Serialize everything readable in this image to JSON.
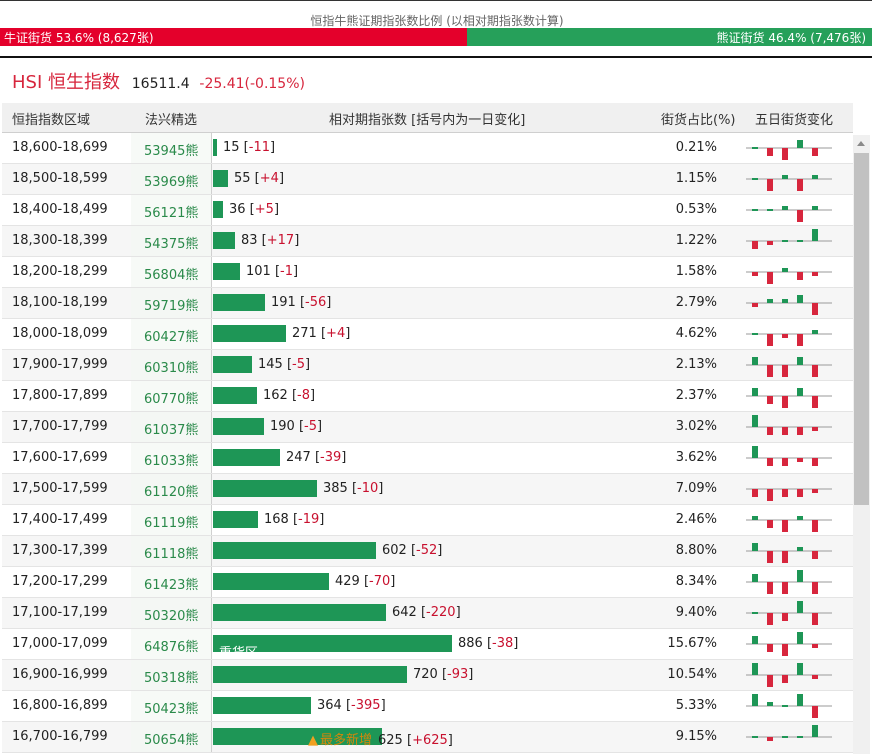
{
  "ratio": {
    "title": "恒指牛熊证期指张数比例 (以相对期指张数计算)",
    "bull_label": "牛证街货",
    "bull_stat": "53.6% (8,627张)",
    "bear_label": "熊证街货",
    "bear_stat": "46.4% (7,476张)",
    "bull_fraction": 0.536,
    "bull_color": "#e4002b",
    "bear_color": "#26a05a"
  },
  "index": {
    "code": "HSI",
    "name": "恒生指数",
    "value": "16511.4",
    "change": "-25.41(-0.15%)"
  },
  "table": {
    "headers": {
      "range": "恒指指数区域",
      "warrant": "法兴精选",
      "contracts": "相对期指张数 [括号内为一日变化]",
      "share": "街货占比(%)",
      "spark": "五日街货变化"
    },
    "rows": [
      {
        "range": "18,600-18,699",
        "warrant": "53945熊",
        "count": 15,
        "count_text": "15",
        "change": "-11",
        "pct": "0.21%",
        "bar_label": "",
        "note": "",
        "spark": [
          0,
          -2,
          -3,
          2,
          -2
        ]
      },
      {
        "range": "18,500-18,599",
        "warrant": "53969熊",
        "count": 55,
        "count_text": "55",
        "change": "+4",
        "pct": "1.15%",
        "bar_label": "",
        "note": "",
        "spark": [
          0,
          -3,
          1,
          -3,
          1
        ]
      },
      {
        "range": "18,400-18,499",
        "warrant": "56121熊",
        "count": 36,
        "count_text": "36",
        "change": "+5",
        "pct": "0.53%",
        "bar_label": "",
        "note": "",
        "spark": [
          0,
          0,
          1,
          -3,
          1
        ]
      },
      {
        "range": "18,300-18,399",
        "warrant": "54375熊",
        "count": 83,
        "count_text": "83",
        "change": "+17",
        "pct": "1.22%",
        "bar_label": "",
        "note": "",
        "spark": [
          -2,
          -1,
          0,
          0,
          3
        ]
      },
      {
        "range": "18,200-18,299",
        "warrant": "56804熊",
        "count": 101,
        "count_text": "101",
        "change": "-1",
        "pct": "1.58%",
        "bar_label": "",
        "note": "",
        "spark": [
          -1,
          -3,
          1,
          -2,
          -1
        ]
      },
      {
        "range": "18,100-18,199",
        "warrant": "59719熊",
        "count": 191,
        "count_text": "191",
        "change": "-56",
        "pct": "2.79%",
        "bar_label": "",
        "note": "",
        "spark": [
          -1,
          1,
          1,
          2,
          -3
        ]
      },
      {
        "range": "18,000-18,099",
        "warrant": "60427熊",
        "count": 271,
        "count_text": "271",
        "change": "+4",
        "pct": "4.62%",
        "bar_label": "",
        "note": "",
        "spark": [
          0,
          -3,
          -1,
          -3,
          1
        ]
      },
      {
        "range": "17,900-17,999",
        "warrant": "60310熊",
        "count": 145,
        "count_text": "145",
        "change": "-5",
        "pct": "2.13%",
        "bar_label": "",
        "note": "",
        "spark": [
          2,
          -3,
          -3,
          2,
          -3
        ]
      },
      {
        "range": "17,800-17,899",
        "warrant": "60770熊",
        "count": 162,
        "count_text": "162",
        "change": "-8",
        "pct": "2.37%",
        "bar_label": "",
        "note": "",
        "spark": [
          2,
          -2,
          -3,
          2,
          -3
        ]
      },
      {
        "range": "17,700-17,799",
        "warrant": "61037熊",
        "count": 190,
        "count_text": "190",
        "change": "-5",
        "pct": "3.02%",
        "bar_label": "",
        "note": "",
        "spark": [
          3,
          -2,
          -2,
          -2,
          -1
        ]
      },
      {
        "range": "17,600-17,699",
        "warrant": "61033熊",
        "count": 247,
        "count_text": "247",
        "change": "-39",
        "pct": "3.62%",
        "bar_label": "",
        "note": "",
        "spark": [
          3,
          -2,
          -2,
          -1,
          -2
        ]
      },
      {
        "range": "17,500-17,599",
        "warrant": "61120熊",
        "count": 385,
        "count_text": "385",
        "change": "-10",
        "pct": "7.09%",
        "bar_label": "",
        "note": "",
        "spark": [
          -2,
          -3,
          -2,
          -2,
          -1
        ]
      },
      {
        "range": "17,400-17,499",
        "warrant": "61119熊",
        "count": 168,
        "count_text": "168",
        "change": "-19",
        "pct": "2.46%",
        "bar_label": "",
        "note": "",
        "spark": [
          1,
          -2,
          -3,
          1,
          -3
        ]
      },
      {
        "range": "17,300-17,399",
        "warrant": "61118熊",
        "count": 602,
        "count_text": "602",
        "change": "-52",
        "pct": "8.80%",
        "bar_label": "",
        "note": "",
        "spark": [
          2,
          -3,
          -3,
          1,
          -2
        ]
      },
      {
        "range": "17,200-17,299",
        "warrant": "61423熊",
        "count": 429,
        "count_text": "429",
        "change": "-70",
        "pct": "8.34%",
        "bar_label": "",
        "note": "",
        "spark": [
          2,
          -3,
          -3,
          3,
          -3
        ]
      },
      {
        "range": "17,100-17,199",
        "warrant": "50320熊",
        "count": 642,
        "count_text": "642",
        "change": "-220",
        "pct": "9.40%",
        "bar_label": "",
        "note": "",
        "spark": [
          0,
          -3,
          -2,
          3,
          -3
        ]
      },
      {
        "range": "17,000-17,099",
        "warrant": "64876熊",
        "count": 886,
        "count_text": "886",
        "change": "-38",
        "pct": "15.67%",
        "bar_label": "重货区",
        "note": "",
        "spark": [
          2,
          -2,
          -3,
          3,
          -1
        ]
      },
      {
        "range": "16,900-16,999",
        "warrant": "50318熊",
        "count": 720,
        "count_text": "720",
        "change": "-93",
        "pct": "10.54%",
        "bar_label": "",
        "note": "",
        "spark": [
          3,
          -3,
          -2,
          3,
          -1
        ]
      },
      {
        "range": "16,800-16,899",
        "warrant": "50423熊",
        "count": 364,
        "count_text": "364",
        "change": "-395",
        "pct": "5.33%",
        "bar_label": "",
        "note": "",
        "spark": [
          3,
          1,
          0,
          3,
          -3
        ]
      },
      {
        "range": "16,700-16,799",
        "warrant": "50654熊",
        "count": 625,
        "count_text": "625",
        "change": "+625",
        "pct": "9.15%",
        "bar_label": "",
        "note": "最多新增",
        "spark": [
          0,
          -1,
          0,
          0,
          3
        ]
      }
    ]
  }
}
